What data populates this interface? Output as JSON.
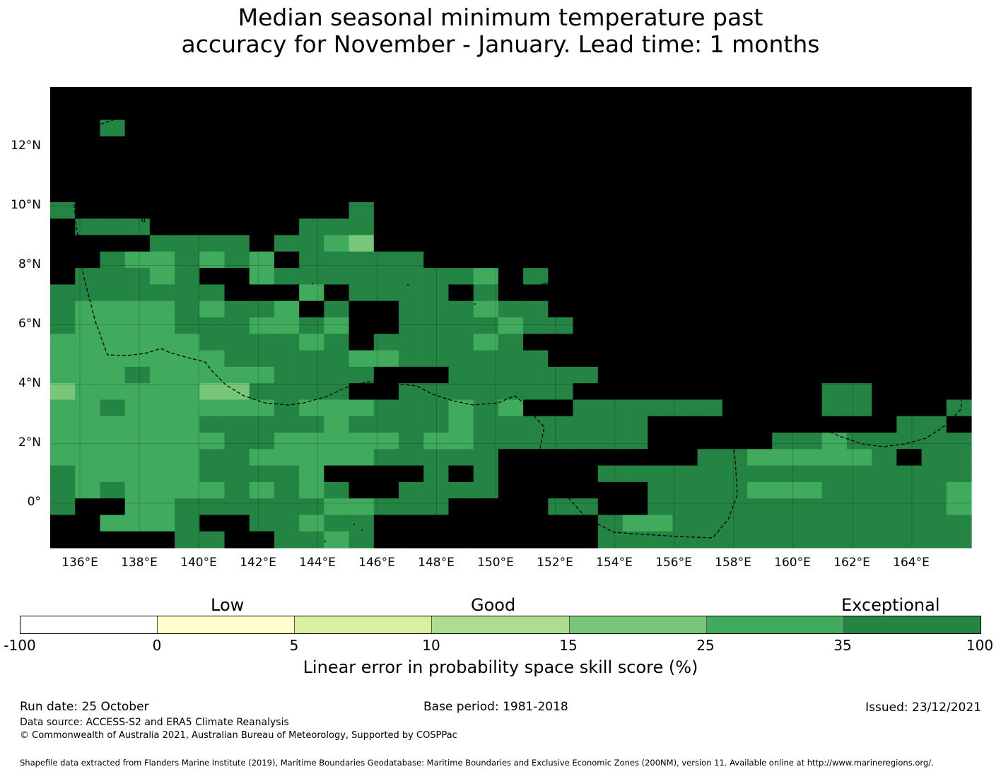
{
  "title": {
    "line1": "Median seasonal minimum temperature past",
    "line2": "accuracy for November - January. Lead time: 1 months"
  },
  "map": {
    "lat_labels": [
      "12°N",
      "10°N",
      "8°N",
      "6°N",
      "4°N",
      "2°N",
      "0°"
    ],
    "lon_labels": [
      "136°E",
      "138°E",
      "140°E",
      "142°E",
      "144°E",
      "146°E",
      "148°E",
      "150°E",
      "152°E",
      "154°E",
      "156°E",
      "158°E",
      "160°E",
      "162°E",
      "164°E"
    ],
    "extent": {
      "lon_min": 135,
      "lon_max": 166,
      "lat_min": -1.5,
      "lat_max": 14
    },
    "grid_rows_north_to_south": [
      "7777777777777777777777777777777777777",
      "7777777777777777777777777777777777777",
      "7767777777777777777777777777777777777",
      "7777777777777777777777777777777777777",
      "7777777777777777777777777777777777777",
      "7777777777777777777777777777777777777",
      "7777777777777777777777777777777777777",
      "6777777777776777777777777777777777777",
      "7666777777666777777777777777777777777",
      "7777666676654777777777777777777777777",
      "7765565657666667777777777777777777777",
      "7666567756666666657677777777777777777",
      "6666666777576666767777777777777777777",
      "6555565665767766656677777777777777777",
      "6555566655657766665667777777777777777",
      "5555556666567666656777777777777777777",
      "5555555666665566666677777777777777777",
      "5556555556666777666666777777777777777",
      "4555554466667766666667777777777667777",
      "5565555556555666565776666667777667776",
      "5555556666656666566666667777777777667",
      "5555555665555565566666667777766566666",
      "5555556655555666667777777766555556766",
      "6555556666577776767777666666666666666",
      "6565555656567766667777776666555666665",
      "6775566666655666777766776666666666665",
      "7755567766566777777777655666666666666",
      "7777766776656777777777666666666666666"
    ]
  },
  "legend": {
    "categories": [
      "Low",
      "Good",
      "Exceptional"
    ],
    "ticks": [
      "-100",
      "0",
      "5",
      "10",
      "15",
      "25",
      "35",
      "100"
    ],
    "colors": [
      "#ffffff",
      "#ffffcc",
      "#d9f0a3",
      "#addd8e",
      "#78c679",
      "#41ab5d",
      "#238443"
    ],
    "label": "Linear error in probability space skill score (%)"
  },
  "footer": {
    "run_date": "Run date: 25 October",
    "base_period": "Base period: 1981-2018",
    "issued": "Issued: 23/12/2021",
    "data_source": "Data source: ACCESS-S2 and ERA5 Climate Reanalysis",
    "copyright": "© Commonwealth of Australia 2021, Australian Bureau of Meteorology, Supported by COSPPac",
    "shapefile": "Shapefile data extracted from Flanders Marine Institute (2019), Maritime Boundaries Geodatabase: Maritime Boundaries and Exclusive Economic Zones (200NM), version 11. Available online at http://www.marineregions.org/."
  }
}
